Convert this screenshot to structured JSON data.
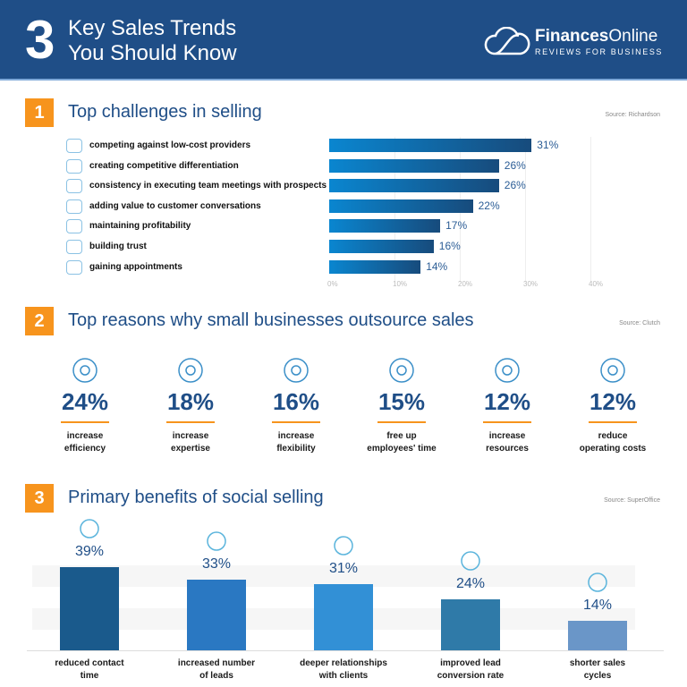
{
  "header": {
    "number": "3",
    "title_line1": "Key Sales Trends",
    "title_line2": "You Should Know",
    "brand_bold": "Finances",
    "brand_light": "Online",
    "brand_tagline": "REVIEWS FOR BUSINESS"
  },
  "colors": {
    "header": "#1f4e87",
    "accent": "#f7941d",
    "bar_start": "#0a86d0",
    "bar_end": "#174b7c"
  },
  "sections": [
    {
      "number": "1",
      "title": "Top challenges in selling",
      "source": "Source: Richardson"
    },
    {
      "number": "2",
      "title": "Top reasons why small businesses outsource sales",
      "source": "Source: Clutch"
    },
    {
      "number": "3",
      "title": "Primary benefits of social selling",
      "source": "Source: SuperOffice"
    }
  ],
  "chart_data": [
    {
      "type": "bar",
      "orientation": "horizontal",
      "categories": [
        "competing against low-cost providers",
        "creating competitive differentiation",
        "consistency in executing team meetings with prospects",
        "adding value to customer conversations",
        "maintaining profitability",
        "building trust",
        "gaining appointments"
      ],
      "values": [
        31,
        26,
        26,
        22,
        17,
        16,
        14
      ],
      "value_labels": [
        "31%",
        "26%",
        "26%",
        "22%",
        "17%",
        "16%",
        "14%"
      ],
      "xlim": [
        0,
        40
      ],
      "ticks": [
        "0%",
        "10%",
        "20%",
        "30%",
        "40%"
      ],
      "grid": true
    },
    {
      "type": "table",
      "items": [
        {
          "value": "24%",
          "label1": "increase",
          "label2": "efficiency",
          "icon": "speedometer-icon"
        },
        {
          "value": "18%",
          "label1": "increase",
          "label2": "expertise",
          "icon": "graduate-icon"
        },
        {
          "value": "16%",
          "label1": "increase",
          "label2": "flexibility",
          "icon": "tree-icon"
        },
        {
          "value": "15%",
          "label1": "free up",
          "label2": "employees' time",
          "icon": "clock-worker-icon"
        },
        {
          "value": "12%",
          "label1": "increase",
          "label2": "resources",
          "icon": "network-icon"
        },
        {
          "value": "12%",
          "label1": "reduce",
          "label2": "operating costs",
          "icon": "piggy-bank-icon"
        }
      ]
    },
    {
      "type": "bar",
      "orientation": "vertical",
      "categories": [
        "reduced contact time",
        "increased number of leads",
        "deeper relationships with clients",
        "improved lead conversion rate",
        "shorter sales cycles"
      ],
      "label_lines": [
        [
          "reduced contact",
          "time"
        ],
        [
          "increased number",
          "of leads"
        ],
        [
          "deeper relationships",
          "with clients"
        ],
        [
          "improved lead",
          "conversion rate"
        ],
        [
          "shorter sales",
          "cycles"
        ]
      ],
      "values": [
        39,
        33,
        31,
        24,
        14
      ],
      "value_labels": [
        "39%",
        "33%",
        "31%",
        "24%",
        "14%"
      ],
      "colors": [
        "#1a5a8c",
        "#2a78c2",
        "#3290d6",
        "#2f7aa8",
        "#6a96c8"
      ],
      "ylim": [
        0,
        40
      ]
    }
  ]
}
